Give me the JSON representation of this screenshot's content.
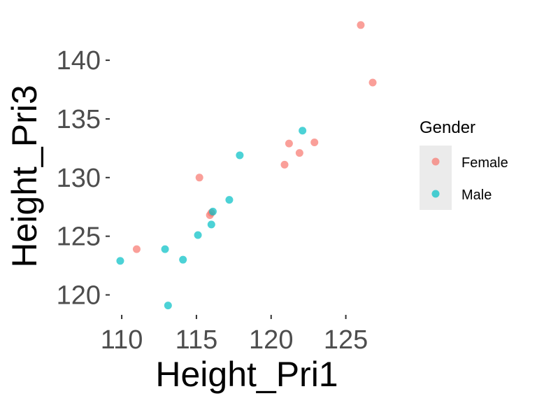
{
  "chart_data": {
    "type": "scatter",
    "xlabel": "Height_Pri1",
    "ylabel": "Height_Pri3",
    "xlim": [
      109.2,
      127.5
    ],
    "ylim": [
      118.3,
      144.3
    ],
    "xticks": [
      110,
      115,
      120,
      125
    ],
    "yticks": [
      120,
      125,
      130,
      135,
      140
    ],
    "grid": false,
    "legend": {
      "title": "Gender",
      "position": "right"
    },
    "series": [
      {
        "name": "Female",
        "color": "#F8766D",
        "points": [
          {
            "x": 126.0,
            "y": 143.0
          },
          {
            "x": 126.8,
            "y": 138.1
          },
          {
            "x": 122.9,
            "y": 133.0
          },
          {
            "x": 121.2,
            "y": 132.9
          },
          {
            "x": 121.9,
            "y": 132.1
          },
          {
            "x": 120.9,
            "y": 131.1
          },
          {
            "x": 115.2,
            "y": 130.0
          },
          {
            "x": 116.0,
            "y": 127.0
          },
          {
            "x": 115.9,
            "y": 126.8
          },
          {
            "x": 111.0,
            "y": 123.9
          }
        ]
      },
      {
        "name": "Male",
        "color": "#00BFC4",
        "points": [
          {
            "x": 122.1,
            "y": 134.0
          },
          {
            "x": 117.9,
            "y": 131.9
          },
          {
            "x": 117.2,
            "y": 128.1
          },
          {
            "x": 116.1,
            "y": 127.1
          },
          {
            "x": 116.0,
            "y": 126.0
          },
          {
            "x": 115.1,
            "y": 125.1
          },
          {
            "x": 112.9,
            "y": 123.9
          },
          {
            "x": 114.1,
            "y": 123.0
          },
          {
            "x": 109.9,
            "y": 122.9
          },
          {
            "x": 113.1,
            "y": 119.1
          }
        ]
      }
    ]
  }
}
